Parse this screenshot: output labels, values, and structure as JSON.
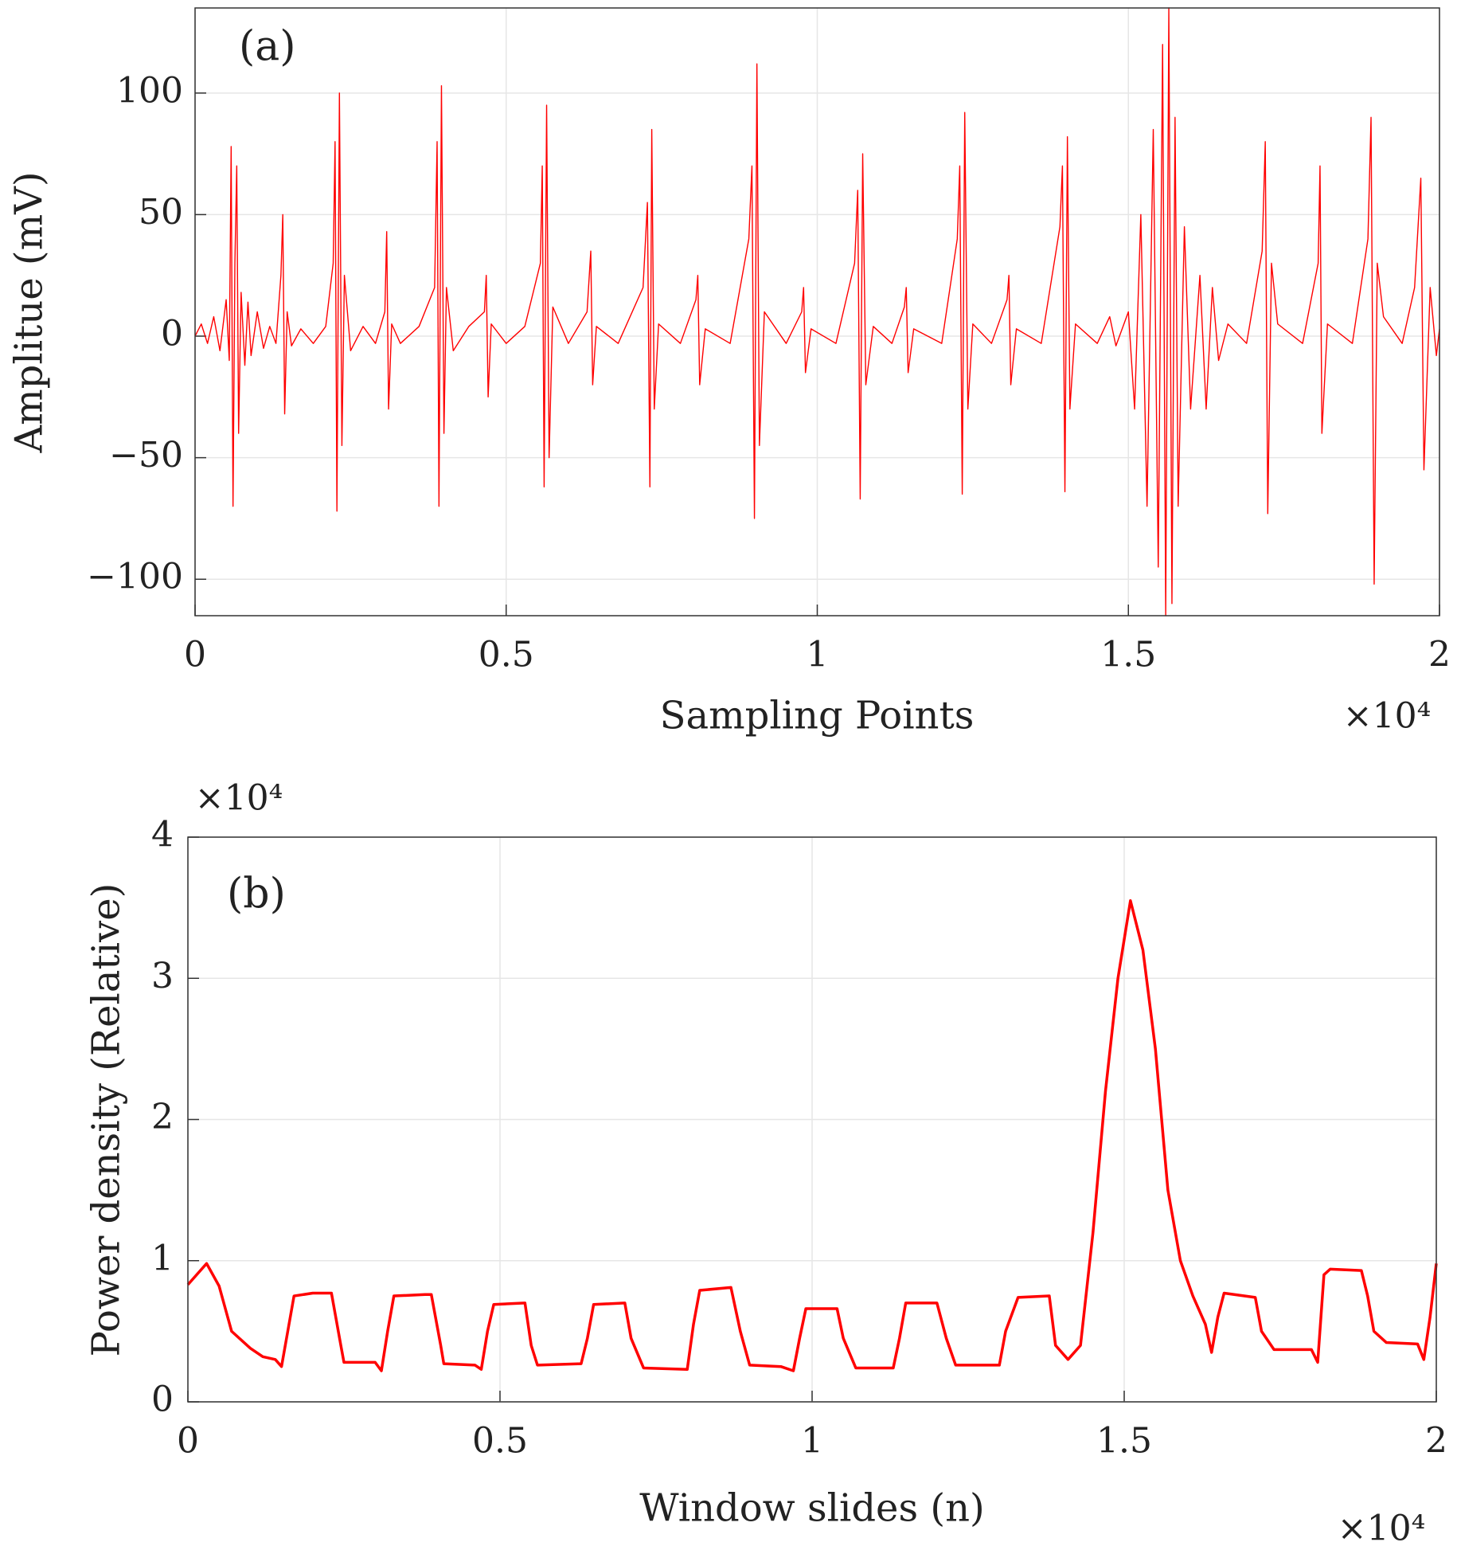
{
  "chart_data": [
    {
      "type": "line",
      "title": "(a)",
      "xlabel": "Sampling Points",
      "ylabel": "Amplitue (mV)",
      "x_multiplier": "×10⁴",
      "xlim": [
        0,
        2
      ],
      "xticks": [
        0,
        0.5,
        1,
        1.5,
        2
      ],
      "ylim": [
        -115,
        135
      ],
      "yticks": [
        {
          "value": -100,
          "label": "−100"
        },
        {
          "value": -50,
          "label": "−50"
        },
        0,
        50,
        100
      ],
      "grid": true,
      "x": [
        0,
        0.01,
        0.02,
        0.03,
        0.04,
        0.05,
        0.055,
        0.058,
        0.061,
        0.064,
        0.067,
        0.07,
        0.074,
        0.08,
        0.085,
        0.09,
        0.1,
        0.11,
        0.12,
        0.13,
        0.138,
        0.141,
        0.144,
        0.148,
        0.155,
        0.17,
        0.19,
        0.21,
        0.222,
        0.225,
        0.228,
        0.232,
        0.236,
        0.24,
        0.25,
        0.27,
        0.29,
        0.305,
        0.308,
        0.311,
        0.316,
        0.33,
        0.36,
        0.385,
        0.389,
        0.392,
        0.396,
        0.4,
        0.404,
        0.415,
        0.44,
        0.465,
        0.468,
        0.471,
        0.476,
        0.5,
        0.53,
        0.555,
        0.558,
        0.561,
        0.565,
        0.569,
        0.575,
        0.6,
        0.63,
        0.636,
        0.639,
        0.645,
        0.68,
        0.72,
        0.727,
        0.731,
        0.734,
        0.738,
        0.745,
        0.78,
        0.805,
        0.808,
        0.811,
        0.82,
        0.86,
        0.89,
        0.895,
        0.899,
        0.903,
        0.907,
        0.915,
        0.95,
        0.975,
        0.978,
        0.981,
        0.99,
        1.03,
        1.06,
        1.065,
        1.069,
        1.073,
        1.078,
        1.09,
        1.12,
        1.14,
        1.143,
        1.146,
        1.155,
        1.2,
        1.225,
        1.229,
        1.233,
        1.237,
        1.242,
        1.25,
        1.28,
        1.305,
        1.308,
        1.311,
        1.32,
        1.36,
        1.39,
        1.394,
        1.398,
        1.402,
        1.406,
        1.415,
        1.45,
        1.47,
        1.48,
        1.5,
        1.51,
        1.52,
        1.53,
        1.54,
        1.548,
        1.555,
        1.56,
        1.565,
        1.57,
        1.575,
        1.58,
        1.59,
        1.6,
        1.615,
        1.625,
        1.635,
        1.645,
        1.66,
        1.69,
        1.715,
        1.72,
        1.724,
        1.73,
        1.74,
        1.78,
        1.805,
        1.808,
        1.811,
        1.82,
        1.86,
        1.885,
        1.89,
        1.895,
        1.9,
        1.91,
        1.94,
        1.96,
        1.97,
        1.975,
        1.985,
        1.995,
        2
      ],
      "series": [
        {
          "color": "#ff0000",
          "values": [
            0,
            5,
            -3,
            8,
            -6,
            15,
            -10,
            78,
            -70,
            30,
            70,
            -40,
            18,
            -12,
            14,
            -8,
            10,
            -5,
            4,
            -3,
            25,
            50,
            -32,
            10,
            -4,
            3,
            -3,
            4,
            30,
            80,
            -72,
            100,
            -45,
            25,
            -6,
            4,
            -3,
            10,
            43,
            -30,
            5,
            -3,
            4,
            20,
            80,
            -70,
            103,
            -40,
            20,
            -6,
            4,
            10,
            25,
            -25,
            5,
            -3,
            4,
            30,
            70,
            -62,
            95,
            -50,
            12,
            -3,
            10,
            35,
            -20,
            4,
            -3,
            20,
            55,
            -62,
            85,
            -30,
            5,
            -3,
            15,
            25,
            -20,
            3,
            -3,
            40,
            70,
            -75,
            112,
            -45,
            10,
            -3,
            10,
            20,
            -15,
            3,
            -3,
            30,
            60,
            -67,
            75,
            -20,
            4,
            -3,
            12,
            20,
            -15,
            3,
            -3,
            40,
            70,
            -65,
            92,
            -30,
            5,
            -3,
            15,
            25,
            -20,
            3,
            -3,
            45,
            70,
            -64,
            82,
            -30,
            5,
            -3,
            8,
            -4,
            10,
            -30,
            50,
            -70,
            85,
            -95,
            120,
            -115,
            135,
            -110,
            90,
            -70,
            45,
            -30,
            25,
            -30,
            20,
            -10,
            5,
            -3,
            35,
            80,
            -73,
            30,
            5,
            -3,
            30,
            70,
            -40,
            5,
            -3,
            40,
            90,
            -102,
            30,
            8,
            -3,
            20,
            65,
            -55,
            20,
            -8,
            3
          ]
        }
      ]
    },
    {
      "type": "line",
      "title": "(b)",
      "xlabel": "Window slides (n)",
      "ylabel": "Power density (Relative)",
      "x_multiplier": "×10⁴",
      "y_multiplier": "×10⁴",
      "xlim": [
        0,
        2
      ],
      "xticks": [
        0,
        0.5,
        1,
        1.5,
        2
      ],
      "ylim": [
        0,
        4
      ],
      "yticks": [
        0,
        1,
        2,
        3,
        4
      ],
      "grid": true,
      "x": [
        0,
        0.03,
        0.05,
        0.07,
        0.1,
        0.12,
        0.14,
        0.15,
        0.16,
        0.17,
        0.2,
        0.23,
        0.245,
        0.25,
        0.3,
        0.31,
        0.32,
        0.33,
        0.38,
        0.39,
        0.405,
        0.41,
        0.46,
        0.47,
        0.48,
        0.49,
        0.54,
        0.55,
        0.56,
        0.63,
        0.64,
        0.65,
        0.7,
        0.71,
        0.73,
        0.8,
        0.81,
        0.82,
        0.87,
        0.885,
        0.9,
        0.95,
        0.97,
        0.98,
        0.99,
        1.04,
        1.05,
        1.07,
        1.13,
        1.14,
        1.15,
        1.2,
        1.215,
        1.23,
        1.3,
        1.31,
        1.33,
        1.38,
        1.39,
        1.41,
        1.43,
        1.45,
        1.47,
        1.49,
        1.51,
        1.53,
        1.55,
        1.57,
        1.59,
        1.61,
        1.63,
        1.64,
        1.65,
        1.66,
        1.71,
        1.72,
        1.74,
        1.8,
        1.81,
        1.82,
        1.83,
        1.88,
        1.89,
        1.9,
        1.92,
        1.97,
        1.98,
        1.99,
        2
      ],
      "series": [
        {
          "color": "#ff0000",
          "values": [
            0.83,
            0.98,
            0.82,
            0.5,
            0.38,
            0.32,
            0.3,
            0.25,
            0.5,
            0.75,
            0.77,
            0.77,
            0.4,
            0.28,
            0.28,
            0.22,
            0.5,
            0.75,
            0.76,
            0.76,
            0.4,
            0.27,
            0.26,
            0.23,
            0.5,
            0.69,
            0.7,
            0.4,
            0.26,
            0.27,
            0.45,
            0.69,
            0.7,
            0.45,
            0.24,
            0.23,
            0.55,
            0.79,
            0.81,
            0.5,
            0.26,
            0.25,
            0.22,
            0.45,
            0.66,
            0.66,
            0.45,
            0.24,
            0.24,
            0.45,
            0.7,
            0.7,
            0.45,
            0.26,
            0.26,
            0.5,
            0.74,
            0.75,
            0.4,
            0.3,
            0.4,
            1.2,
            2.2,
            3.0,
            3.55,
            3.2,
            2.5,
            1.5,
            1.0,
            0.75,
            0.55,
            0.35,
            0.6,
            0.77,
            0.74,
            0.5,
            0.37,
            0.37,
            0.28,
            0.9,
            0.94,
            0.93,
            0.75,
            0.5,
            0.42,
            0.41,
            0.3,
            0.6,
            0.98
          ]
        }
      ]
    }
  ]
}
